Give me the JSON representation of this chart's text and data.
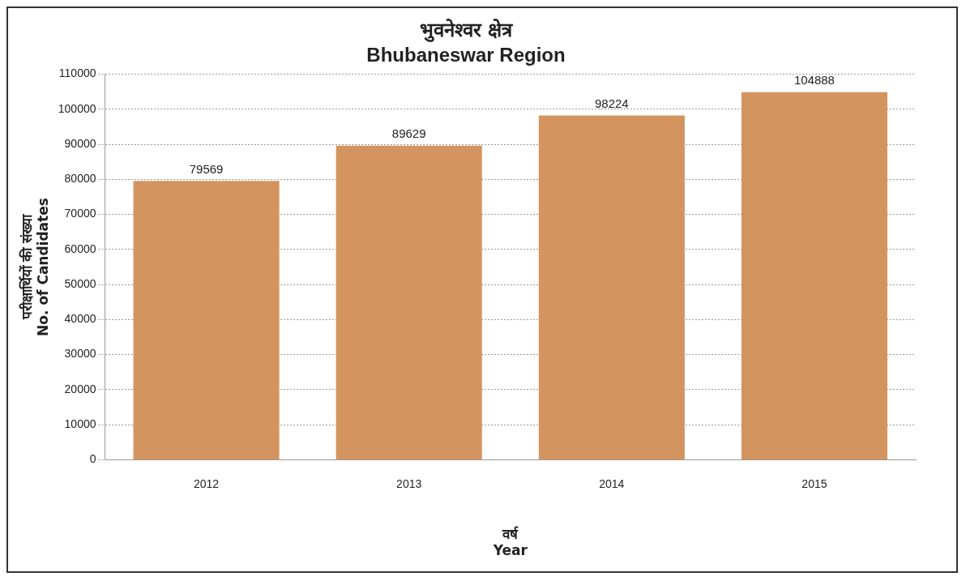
{
  "chart_data": {
    "type": "bar",
    "title": "भुवनेश्वर क्षेत्र",
    "subtitle": "Bhubaneswar Region",
    "xlabel": "वर्ष\nYear",
    "ylabel": "परीक्षार्थियों की संख्या\nNo. of Candidates",
    "categories": [
      "2012",
      "2013",
      "2014",
      "2015"
    ],
    "values": [
      79569,
      89629,
      98224,
      104888
    ],
    "color": "#d4945f",
    "ylim": [
      0,
      110000
    ],
    "yticks": [
      0,
      10000,
      20000,
      30000,
      40000,
      50000,
      60000,
      70000,
      80000,
      90000,
      100000,
      110000
    ],
    "grid": "y",
    "legend": false,
    "data_labels": true
  }
}
